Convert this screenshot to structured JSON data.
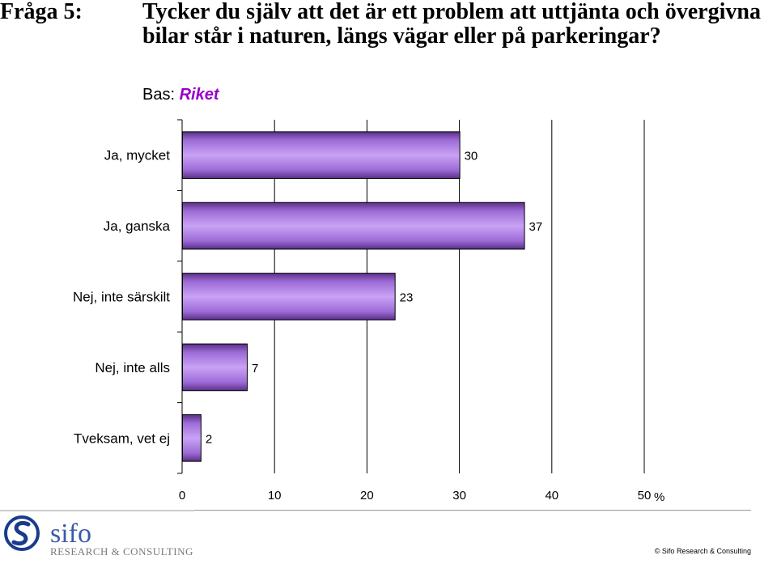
{
  "question": {
    "label": "Fråga 5:",
    "text": "Tycker du själv att det är ett problem att uttjänta och övergivna bilar står i naturen, längs vägar eller på parkeringar?"
  },
  "base": {
    "label": "Bas:",
    "value": "Riket"
  },
  "chart_data": {
    "type": "bar",
    "orientation": "horizontal",
    "categories": [
      "Ja, mycket",
      "Ja, ganska",
      "Nej, inte särskilt",
      "Nej, inte alls",
      "Tveksam, vet ej"
    ],
    "values": [
      30,
      37,
      23,
      7,
      2
    ],
    "x_ticks": [
      0,
      10,
      20,
      30,
      40,
      50
    ],
    "x_unit": "%",
    "xlim": [
      0,
      50
    ],
    "grid": true,
    "bar_color": "#b07de0"
  },
  "footer": {
    "logo_name": "sifo",
    "logo_tagline": "RESEARCH & CONSULTING",
    "copyright": "© Sifo Research & Consulting"
  }
}
